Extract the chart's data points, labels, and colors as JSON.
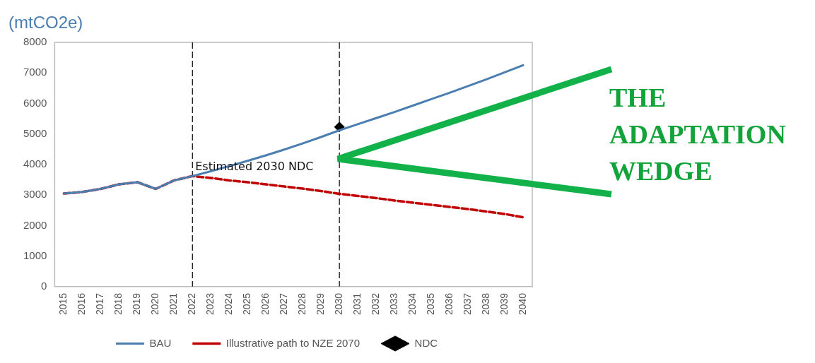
{
  "chart_data": {
    "type": "line",
    "ylabel": "(mtCO2e)",
    "categories": [
      "2015",
      "2016",
      "2017",
      "2018",
      "2019",
      "2020",
      "2021",
      "2022",
      "2023",
      "2024",
      "2025",
      "2026",
      "2027",
      "2028",
      "2029",
      "2030",
      "2031",
      "2032",
      "2033",
      "2034",
      "2035",
      "2036",
      "2037",
      "2038",
      "2039",
      "2040"
    ],
    "series": [
      {
        "name": "BAU",
        "color": "#4a7eb0",
        "line_style": "solid",
        "marker": "none",
        "values": [
          3050,
          3100,
          3200,
          3350,
          3420,
          3200,
          3480,
          3620,
          3780,
          3950,
          4120,
          4300,
          4490,
          4690,
          4900,
          5120,
          5320,
          5520,
          5720,
          5930,
          6140,
          6350,
          6570,
          6790,
          7020,
          7250
        ]
      },
      {
        "name": "Illustrative path to NZE 2070",
        "color": "#c00000",
        "line_style": "dashed",
        "marker": "none",
        "values": [
          3050,
          3100,
          3200,
          3350,
          3420,
          3200,
          3480,
          3620,
          3560,
          3480,
          3420,
          3350,
          3280,
          3210,
          3130,
          3040,
          2970,
          2900,
          2820,
          2750,
          2680,
          2610,
          2540,
          2460,
          2380,
          2270
        ]
      },
      {
        "name": "NDC",
        "type": "scatter",
        "color": "#000000",
        "marker": "diamond",
        "values": [
          null,
          null,
          null,
          null,
          null,
          null,
          null,
          null,
          null,
          null,
          null,
          null,
          null,
          null,
          null,
          5230,
          null,
          null,
          null,
          null,
          null,
          null,
          null,
          null,
          null,
          null
        ]
      }
    ],
    "ylim": [
      0,
      8000
    ],
    "yticks": [
      0,
      1000,
      2000,
      3000,
      4000,
      5000,
      6000,
      7000,
      8000
    ],
    "grid": false,
    "legend": "bottom",
    "ref_lines": [
      {
        "axis": "x",
        "value": "2022",
        "color": "#000000",
        "line_style": "dashed"
      },
      {
        "axis": "x",
        "value": "2030",
        "color": "#000000",
        "line_style": "dashed"
      }
    ],
    "annotations": [
      {
        "text": "Estimated 2030 NDC",
        "x": "2022",
        "y": 3950
      },
      "THE ADAPTATION WEDGE"
    ]
  }
}
